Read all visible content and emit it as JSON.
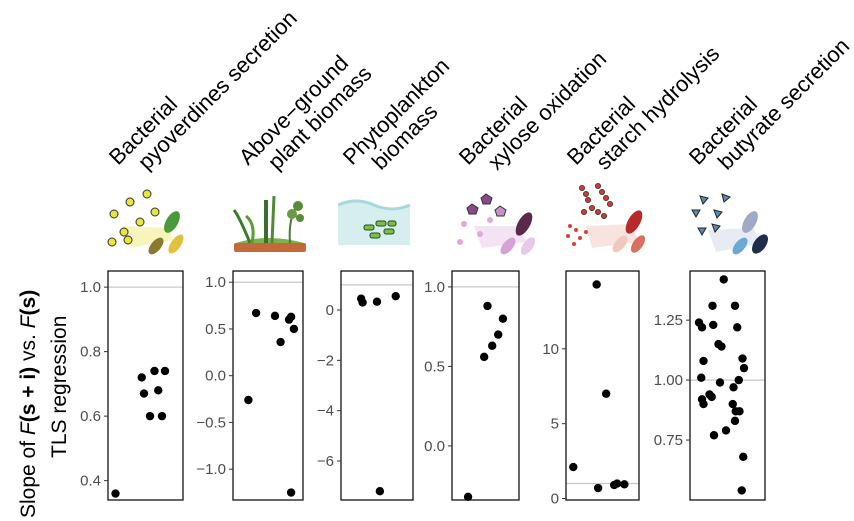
{
  "y_axis_label": {
    "line1_prefix": "Slope of ",
    "f1": "F",
    "s_plus_i": "(s + i)",
    "vs": " vs. ",
    "f2": "F",
    "s": "(s)",
    "line2": "TLS regression"
  },
  "chart_data": [
    {
      "type": "scatter",
      "title_lines": [
        "Bacterial",
        "pyoverdines secretion"
      ],
      "icon": "bacteria-pyoverdines-icon",
      "ylim": [
        0.34,
        1.05
      ],
      "yticks": [
        0.4,
        0.6,
        0.8,
        1.0
      ],
      "ytick_labels": [
        "0.4",
        "0.6",
        "0.8",
        "1.0"
      ],
      "reference_line": 1.0,
      "points": [
        {
          "x": 0.1,
          "y": 0.36
        },
        {
          "x": 0.45,
          "y": 0.72
        },
        {
          "x": 0.48,
          "y": 0.67
        },
        {
          "x": 0.56,
          "y": 0.6
        },
        {
          "x": 0.62,
          "y": 0.74
        },
        {
          "x": 0.67,
          "y": 0.68
        },
        {
          "x": 0.72,
          "y": 0.6
        },
        {
          "x": 0.76,
          "y": 0.74
        }
      ]
    },
    {
      "type": "scatter",
      "title_lines": [
        "Above−ground",
        "plant biomass"
      ],
      "icon": "plant-biomass-icon",
      "ylim": [
        -1.33,
        1.12
      ],
      "yticks": [
        -1.0,
        -0.5,
        0.0,
        0.5,
        1.0
      ],
      "ytick_labels": [
        "−1.0",
        "−0.5",
        "0.0",
        "0.5",
        "1.0"
      ],
      "reference_line": 1.0,
      "points": [
        {
          "x": 0.22,
          "y": -0.26
        },
        {
          "x": 0.33,
          "y": 0.67
        },
        {
          "x": 0.6,
          "y": 0.64
        },
        {
          "x": 0.68,
          "y": 0.36
        },
        {
          "x": 0.8,
          "y": 0.6
        },
        {
          "x": 0.83,
          "y": 0.63
        },
        {
          "x": 0.87,
          "y": 0.5
        },
        {
          "x": 0.83,
          "y": -1.25
        }
      ]
    },
    {
      "type": "scatter",
      "title_lines": [
        "Phytoplankton",
        "biomass"
      ],
      "icon": "phytoplankton-icon",
      "ylim": [
        -7.55,
        1.55
      ],
      "yticks": [
        -6,
        -4,
        -2,
        0
      ],
      "ytick_labels": [
        "−6",
        "−4",
        "−2",
        "0"
      ],
      "reference_line": 1.0,
      "points": [
        {
          "x": 0.28,
          "y": 0.45
        },
        {
          "x": 0.3,
          "y": 0.3
        },
        {
          "x": 0.5,
          "y": 0.33
        },
        {
          "x": 0.76,
          "y": 0.55
        },
        {
          "x": 0.54,
          "y": -7.2
        }
      ]
    },
    {
      "type": "scatter",
      "title_lines": [
        "Bacterial",
        "xylose oxidation"
      ],
      "icon": "bacteria-xylose-icon",
      "ylim": [
        -0.34,
        1.1
      ],
      "yticks": [
        0.0,
        0.5,
        1.0
      ],
      "ytick_labels": [
        "0.0",
        "0.5",
        "1.0"
      ],
      "reference_line": 1.0,
      "points": [
        {
          "x": 0.24,
          "y": -0.32
        },
        {
          "x": 0.48,
          "y": 0.56
        },
        {
          "x": 0.53,
          "y": 0.88
        },
        {
          "x": 0.6,
          "y": 0.63
        },
        {
          "x": 0.69,
          "y": 0.7
        },
        {
          "x": 0.76,
          "y": 0.8
        }
      ]
    },
    {
      "type": "scatter",
      "title_lines": [
        "Bacterial",
        "starch hydrolysis"
      ],
      "icon": "bacteria-starch-icon",
      "ylim": [
        -0.1,
        15.2
      ],
      "yticks": [
        0,
        5,
        10
      ],
      "ytick_labels": [
        "0",
        "5",
        "10"
      ],
      "reference_line": 1.0,
      "points": [
        {
          "x": 0.1,
          "y": 2.1
        },
        {
          "x": 0.42,
          "y": 14.3
        },
        {
          "x": 0.44,
          "y": 0.7
        },
        {
          "x": 0.55,
          "y": 7.0
        },
        {
          "x": 0.66,
          "y": 0.9
        },
        {
          "x": 0.7,
          "y": 1.0
        },
        {
          "x": 0.8,
          "y": 0.95
        }
      ]
    },
    {
      "type": "scatter",
      "title_lines": [
        "Bacterial",
        "butyrate secretion"
      ],
      "icon": "bacteria-butyrate-icon",
      "ylim": [
        0.5,
        1.455
      ],
      "yticks": [
        0.75,
        1.0,
        1.25
      ],
      "ytick_labels": [
        "0.75",
        "1.00",
        "1.25"
      ],
      "reference_line": 1.0,
      "points": [
        {
          "x": 0.12,
          "y": 1.24
        },
        {
          "x": 0.16,
          "y": 1.22
        },
        {
          "x": 0.18,
          "y": 1.08
        },
        {
          "x": 0.15,
          "y": 1.01
        },
        {
          "x": 0.16,
          "y": 0.92
        },
        {
          "x": 0.18,
          "y": 0.9
        },
        {
          "x": 0.3,
          "y": 1.31
        },
        {
          "x": 0.31,
          "y": 1.23
        },
        {
          "x": 0.26,
          "y": 0.94
        },
        {
          "x": 0.29,
          "y": 0.93
        },
        {
          "x": 0.32,
          "y": 0.77
        },
        {
          "x": 0.38,
          "y": 1.15
        },
        {
          "x": 0.4,
          "y": 0.99
        },
        {
          "x": 0.42,
          "y": 1.14
        },
        {
          "x": 0.45,
          "y": 1.42
        },
        {
          "x": 0.48,
          "y": 0.79
        },
        {
          "x": 0.58,
          "y": 0.97
        },
        {
          "x": 0.6,
          "y": 1.31
        },
        {
          "x": 0.57,
          "y": 0.9
        },
        {
          "x": 0.61,
          "y": 0.87
        },
        {
          "x": 0.6,
          "y": 0.83
        },
        {
          "x": 0.63,
          "y": 1.22
        },
        {
          "x": 0.65,
          "y": 1.0
        },
        {
          "x": 0.66,
          "y": 0.87
        },
        {
          "x": 0.7,
          "y": 1.09
        },
        {
          "x": 0.72,
          "y": 1.05
        },
        {
          "x": 0.71,
          "y": 0.68
        },
        {
          "x": 0.69,
          "y": 0.54
        }
      ]
    }
  ]
}
